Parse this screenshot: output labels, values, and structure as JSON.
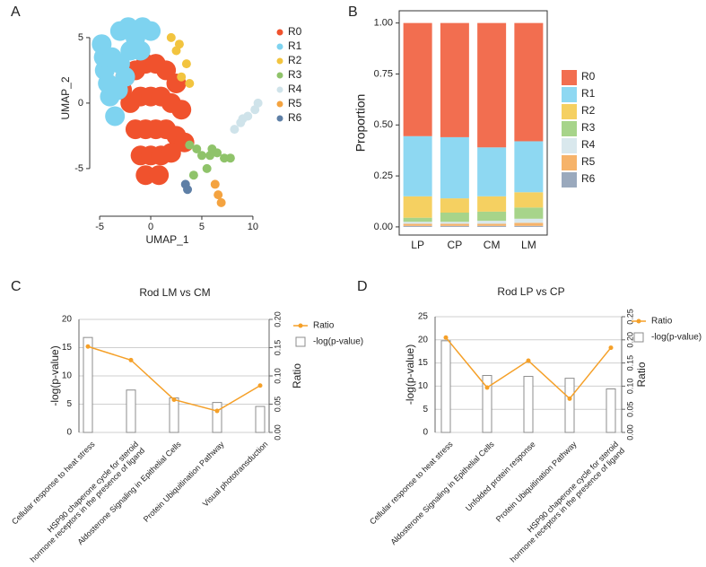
{
  "chart_data": [
    {
      "type": "scatter",
      "panel_label": "A",
      "xlabel": "UMAP_1",
      "ylabel": "UMAP_2",
      "xlim": [
        -6.5,
        11.5
      ],
      "ylim": [
        -8.5,
        6.5
      ],
      "xticks": [
        -5,
        0,
        5,
        10
      ],
      "yticks": [
        -5,
        0,
        5
      ],
      "series": [
        {
          "name": "R0",
          "color": "#f0522d",
          "x": [
            -2.5,
            -1.5,
            -0.5,
            0.5,
            1.5,
            2.5,
            -2,
            -1,
            0,
            1,
            2,
            3,
            -1.5,
            -0.5,
            0.5,
            1.5,
            2.5,
            -1,
            0,
            1,
            2,
            -0.5,
            0.8,
            3.3,
            -2.8
          ],
          "y": [
            2,
            2.5,
            3,
            3,
            2.5,
            1.5,
            0,
            0.5,
            0.5,
            0.5,
            0,
            -0.5,
            -2,
            -2,
            -2,
            -2,
            -2.5,
            -4,
            -4,
            -4,
            -3.8,
            -5.5,
            -5.5,
            -3,
            1
          ]
        },
        {
          "name": "R1",
          "color": "#7ed3f0",
          "x": [
            -4.8,
            -4.5,
            -4,
            -3.5,
            -3,
            -2.2,
            -1.5,
            -0.8,
            -4.6,
            -3.8,
            -3,
            -2,
            -1,
            -4.2,
            -3.2,
            -2.5,
            0
          ],
          "y": [
            4.5,
            2.5,
            0.5,
            -1,
            5.5,
            5.8,
            5,
            5.8,
            3.5,
            3.5,
            3,
            4,
            4,
            1.5,
            1,
            2,
            5.5
          ]
        },
        {
          "name": "R2",
          "color": "#f2c43f",
          "x": [
            2,
            2.8,
            3.5,
            3,
            2.5,
            3.8
          ],
          "y": [
            5,
            4.5,
            3,
            2,
            4,
            1.5
          ]
        },
        {
          "name": "R3",
          "color": "#8fc36a",
          "x": [
            3.8,
            4.5,
            5,
            5.8,
            6.5,
            7.2,
            7.8,
            5.5,
            4.2,
            6
          ],
          "y": [
            -3.2,
            -3.5,
            -4,
            -4,
            -3.8,
            -4.2,
            -4.2,
            -5,
            -5.5,
            -3.5
          ]
        },
        {
          "name": "R4",
          "color": "#cfe3ea",
          "x": [
            8.2,
            8.8,
            9.5,
            10.2,
            10.5,
            9
          ],
          "y": [
            -2,
            -1.5,
            -1,
            -0.5,
            0,
            -1.2
          ]
        },
        {
          "name": "R5",
          "color": "#f4a340",
          "x": [
            6.3,
            6.6,
            6.9
          ],
          "y": [
            -6.2,
            -7,
            -7.6
          ]
        },
        {
          "name": "R6",
          "color": "#5e7fa6",
          "x": [
            3.4,
            3.6
          ],
          "y": [
            -6.2,
            -6.6
          ]
        }
      ]
    },
    {
      "type": "bar",
      "stacked": true,
      "panel_label": "B",
      "ylabel": "Proportion",
      "categories": [
        "LP",
        "CP",
        "CM",
        "LM"
      ],
      "ylim": [
        -0.04,
        1.06
      ],
      "yticks": [
        {
          "value": 0,
          "label": "0.00"
        },
        {
          "value": 0.25,
          "label": "0.25"
        },
        {
          "value": 0.5,
          "label": "0.50"
        },
        {
          "value": 0.75,
          "label": "0.75"
        },
        {
          "value": 1,
          "label": "1.00"
        }
      ],
      "series": [
        {
          "name": "R0",
          "color": "#f26e50",
          "values": [
            0.555,
            0.56,
            0.61,
            0.58
          ]
        },
        {
          "name": "R1",
          "color": "#8ed8f2",
          "values": [
            0.295,
            0.3,
            0.24,
            0.25
          ]
        },
        {
          "name": "R2",
          "color": "#f5d061",
          "values": [
            0.105,
            0.07,
            0.075,
            0.075
          ]
        },
        {
          "name": "R3",
          "color": "#a7d48a",
          "values": [
            0.02,
            0.045,
            0.045,
            0.055
          ]
        },
        {
          "name": "R4",
          "color": "#d9e8ed",
          "values": [
            0.01,
            0.01,
            0.015,
            0.02
          ]
        },
        {
          "name": "R5",
          "color": "#f6b36a",
          "values": [
            0.01,
            0.01,
            0.01,
            0.015
          ]
        },
        {
          "name": "R6",
          "color": "#9aa9bd",
          "values": [
            0.005,
            0.005,
            0.005,
            0.005
          ]
        }
      ]
    },
    {
      "type": "combo",
      "panel_label": "C",
      "title": "Rod LM vs CM",
      "ylabel": "-log(p-value)",
      "y2label": "Ratio",
      "grid": true,
      "categories": [
        "Cellular response to heat stress",
        "HSP90 chaperone cycle for steroid\nhormone receptors in the presence of ligand",
        "Aldosterone Signaling in Epithelial Cells",
        "Protein Ubiquitination Pathway",
        "Visual phototransduction"
      ],
      "ylim": [
        0,
        20
      ],
      "yticks": [
        0,
        5,
        10,
        15,
        20
      ],
      "y2lim": [
        0,
        0.2
      ],
      "y2ticks": [
        {
          "value": 0,
          "label": "0.00"
        },
        {
          "value": 0.05,
          "label": "0.05"
        },
        {
          "value": 0.1,
          "label": "0.10"
        },
        {
          "value": 0.15,
          "label": "0.15"
        },
        {
          "value": 0.2,
          "label": "0.20"
        }
      ],
      "series": [
        {
          "name": "-log(p-value)",
          "color": "#8c8c8c",
          "values": [
            16.8,
            7.5,
            6.1,
            5.3,
            4.6
          ]
        },
        {
          "name": "Ratio",
          "color": "#f5a028",
          "axis": "y2",
          "values": [
            0.152,
            0.128,
            0.058,
            0.038,
            0.083
          ]
        }
      ]
    },
    {
      "type": "combo",
      "panel_label": "D",
      "title": "Rod LP vs CP",
      "ylabel": "-log(p-value)",
      "y2label": "Ratio",
      "grid": true,
      "categories": [
        "Cellular response to heat stress",
        "Aldosterone Signaling in Epithelial Cells",
        "Unfolded protein response",
        "Protein Ubiquitination Pathway",
        "HSP90 chaperone cycle for steroid\nhormone receptors in the presence of ligand"
      ],
      "ylim": [
        0,
        25
      ],
      "yticks": [
        0,
        5,
        10,
        15,
        20,
        25
      ],
      "y2lim": [
        0,
        0.25
      ],
      "y2ticks": [
        {
          "value": 0,
          "label": "0.00"
        },
        {
          "value": 0.05,
          "label": "0.05"
        },
        {
          "value": 0.1,
          "label": "0.10"
        },
        {
          "value": 0.15,
          "label": "0.15"
        },
        {
          "value": 0.2,
          "label": "0.20"
        },
        {
          "value": 0.25,
          "label": "0.25"
        }
      ],
      "series": [
        {
          "name": "-log(p-value)",
          "color": "#8c8c8c",
          "values": [
            19.8,
            12.3,
            12.1,
            11.7,
            9.4
          ]
        },
        {
          "name": "Ratio",
          "color": "#f5a028",
          "axis": "y2",
          "values": [
            0.205,
            0.097,
            0.155,
            0.073,
            0.183
          ]
        }
      ]
    }
  ]
}
